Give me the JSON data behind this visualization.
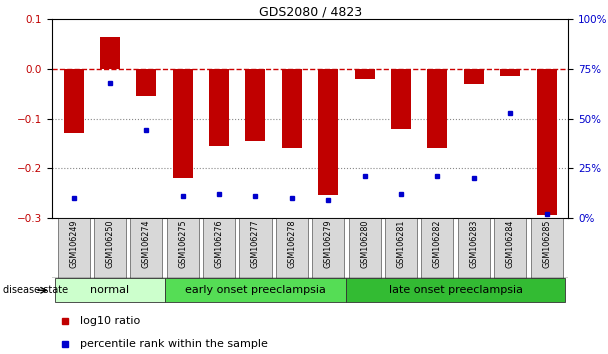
{
  "title": "GDS2080 / 4823",
  "samples": [
    "GSM106249",
    "GSM106250",
    "GSM106274",
    "GSM106275",
    "GSM106276",
    "GSM106277",
    "GSM106278",
    "GSM106279",
    "GSM106280",
    "GSM106281",
    "GSM106282",
    "GSM106283",
    "GSM106284",
    "GSM106285"
  ],
  "log10_ratio": [
    -0.13,
    0.065,
    -0.055,
    -0.22,
    -0.155,
    -0.145,
    -0.16,
    -0.255,
    -0.02,
    -0.12,
    -0.16,
    -0.03,
    -0.015,
    -0.295
  ],
  "percentile_rank": [
    10,
    68,
    44,
    11,
    12,
    11,
    10,
    9,
    21,
    12,
    21,
    20,
    53,
    2
  ],
  "bar_color": "#c00000",
  "dot_color": "#0000cc",
  "ylim_left": [
    -0.3,
    0.1
  ],
  "ylim_right": [
    0,
    100
  ],
  "yticks_left": [
    -0.3,
    -0.2,
    -0.1,
    0,
    0.1
  ],
  "yticks_right": [
    0,
    25,
    50,
    75,
    100
  ],
  "groups": [
    {
      "label": "normal",
      "start": 0,
      "end": 3,
      "color": "#ccffcc"
    },
    {
      "label": "early onset preeclampsia",
      "start": 3,
      "end": 8,
      "color": "#55dd55"
    },
    {
      "label": "late onset preeclampsia",
      "start": 8,
      "end": 14,
      "color": "#33bb33"
    }
  ],
  "disease_state_label": "disease state",
  "legend_items": [
    {
      "label": "log10 ratio",
      "color": "#c00000"
    },
    {
      "label": "percentile rank within the sample",
      "color": "#0000cc"
    }
  ],
  "hline_y": 0,
  "hline_color": "#cc0000",
  "hline_style": "--",
  "dotted_lines": [
    -0.1,
    -0.2
  ],
  "background_color": "#ffffff",
  "bar_width": 0.55,
  "sample_box_color": "#d8d8d8",
  "title_fontsize": 9,
  "tick_fontsize": 7.5,
  "group_fontsize": 8,
  "legend_fontsize": 8
}
